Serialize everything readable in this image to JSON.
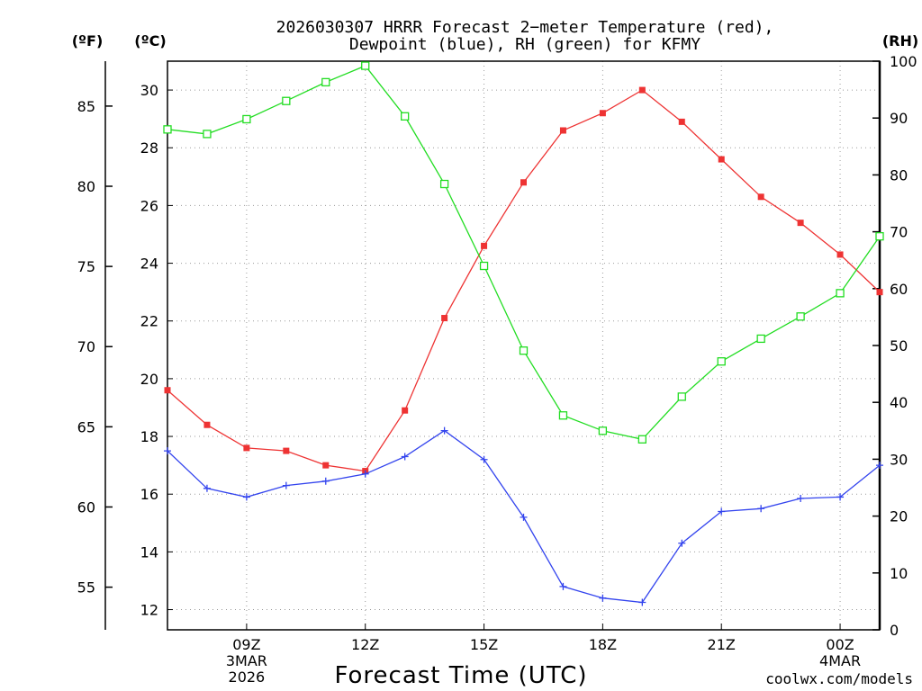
{
  "chart_data": {
    "type": "line",
    "title": "2026030307 HRRR Forecast 2−meter Temperature (red),",
    "subtitle": "Dewpoint (blue), RH (green) for KFMY",
    "xlabel": "Forecast Time (UTC)",
    "units": {
      "fahrenheit": "(ºF)",
      "celsius": "(ºC)",
      "rh": "(RH)"
    },
    "x_hours": [
      7,
      8,
      9,
      10,
      11,
      12,
      13,
      14,
      15,
      16,
      17,
      18,
      19,
      20,
      21,
      22,
      23,
      24,
      25
    ],
    "xlim": [
      7,
      25
    ],
    "x_ticks": [
      {
        "hour": 9,
        "lines": [
          "09Z",
          "3MAR",
          "2026"
        ]
      },
      {
        "hour": 12,
        "lines": [
          "12Z"
        ]
      },
      {
        "hour": 15,
        "lines": [
          "15Z"
        ]
      },
      {
        "hour": 18,
        "lines": [
          "18Z"
        ]
      },
      {
        "hour": 21,
        "lines": [
          "21Z"
        ]
      },
      {
        "hour": 24,
        "lines": [
          "00Z",
          "4MAR"
        ]
      }
    ],
    "celsius_axis": {
      "ylim": [
        11.3,
        31
      ],
      "ticks": [
        "12",
        "14",
        "16",
        "18",
        "20",
        "22",
        "24",
        "26",
        "28",
        "30"
      ]
    },
    "fahrenheit_axis": {
      "ticks": [
        "55",
        "60",
        "65",
        "70",
        "75",
        "80",
        "85"
      ]
    },
    "rh_axis": {
      "ylim": [
        0,
        100
      ],
      "ticks": [
        "0",
        "10",
        "20",
        "30",
        "40",
        "50",
        "60",
        "70",
        "80",
        "90",
        "100"
      ]
    },
    "series": [
      {
        "name": "Temperature",
        "axis": "celsius",
        "color": "#ee3333",
        "marker": "filled-square",
        "values": [
          19.6,
          18.4,
          17.6,
          17.5,
          17.0,
          16.8,
          18.9,
          22.1,
          24.6,
          26.8,
          28.6,
          29.2,
          30.0,
          28.9,
          27.6,
          26.3,
          25.4,
          24.3,
          23.0
        ]
      },
      {
        "name": "Dewpoint",
        "axis": "celsius",
        "color": "#3344ee",
        "marker": "plus",
        "values": [
          17.5,
          16.2,
          15.9,
          16.3,
          16.45,
          16.7,
          17.3,
          18.2,
          17.2,
          15.2,
          12.8,
          12.4,
          12.25,
          14.3,
          15.4,
          15.5,
          15.85,
          15.9,
          17.0
        ]
      },
      {
        "name": "RH",
        "axis": "rh",
        "color": "#22dd22",
        "marker": "open-square",
        "values": [
          88,
          87.2,
          89.8,
          93,
          96.3,
          99.2,
          90.3,
          78.4,
          64,
          49.1,
          37.7,
          35,
          33.5,
          41,
          47.2,
          51.2,
          55.1,
          59.2,
          69.2
        ]
      }
    ]
  },
  "footer": {
    "credit": "coolwx.com/models"
  },
  "colors": {
    "credit": "#e8342c",
    "grid": "#9a9a9a"
  }
}
